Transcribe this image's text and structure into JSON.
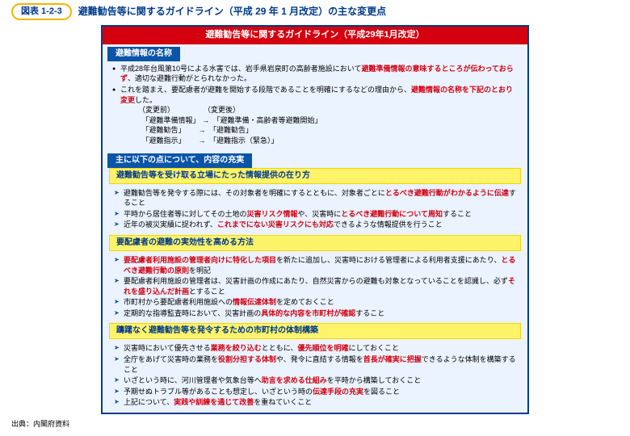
{
  "figureTag": "図表 1-2-3",
  "figureTitle": "避難勧告等に関するガイドライン（平成 29 年 1 月改定）の主な変更点",
  "banner": "避難勧告等に関するガイドライン（平成29年1月改定）",
  "tab1": "避難情報の名称",
  "tab2": "主に以下の点について、内容の充実",
  "sec1": {
    "b1a": "平成28年台風第10号による水害では、岩手県岩泉町の高齢者施設において",
    "b1r": "避難準備情報の意味するところが伝わっておらず",
    "b1b": "、適切な避難行動がとられなかった。",
    "b2a": "これを踏まえ、要配慮者が避難を開始する段階であることを明確にするなどの理由から、",
    "b2r": "避難情報の名称を下記のとおり変更",
    "b2b": "した。",
    "hdr": "（変更前）　　　　　（変更後）",
    "r1": "　「避難準備情報」 →　「避難準備・高齢者等避難開始」",
    "r2": "　「避難勧告」　　 →　「避難勧告」",
    "r3": "　「避難指示」　　 →　「避難指示（緊急）」"
  },
  "h1": "避難勧告等を受け取る立場にたった情報提供の在り方",
  "h2": "要配慮者の避難の実効性を高める方法",
  "h3": "躊躇なく避難勧告等を発令するための市町村の体制構築",
  "g1": {
    "a1a": "避難勧告等を発令する際には、その対象者を明確にするとともに、対象者ごとに",
    "a1r": "とるべき避難行動がわかるように伝達",
    "a1b": "すること",
    "a2a": "平時から居住者等に対してその土地の",
    "a2r1": "災害リスク情報",
    "a2m": "や、災害時に",
    "a2r2": "とるべき避難行動について周知",
    "a2b": "すること",
    "a3a": "近年の被災実績に捉われず、",
    "a3r": "これまでにない災害リスクにも対応",
    "a3b": "できるような情報提供を行うこと"
  },
  "g2": {
    "a1r": "要配慮者利用施設の管理者向けに特化した項目",
    "a1b": "を新たに追加し、災害時における管理者による利用者支援にあたり、",
    "a1r2": "とるべき避難行動の原則",
    "a1c": "を明記",
    "a2a": "要配慮者利用施設の管理者は、災害計画の作成にあたり、自然災害からの避難も対象となっていることを認識し、必ず",
    "a2r": "それを盛り込んだ計画",
    "a2b": "とすること",
    "a3a": "市町村から要配慮者利用施設への",
    "a3r": "情報伝達体制",
    "a3b": "を定めておくこと",
    "a4a": "定期的な指導監査時において、災害計画の",
    "a4r": "具体的な内容を市町村が確認",
    "a4b": "すること"
  },
  "g3": {
    "a1a": "災害時において優先させる",
    "a1r": "業務を絞り込む",
    "a1m": "とともに、",
    "a1r2": "優先順位を明確",
    "a1b": "にしておくこと",
    "a2a": "全庁をあげて災害時の業務を",
    "a2r": "役割分担する体制",
    "a2m": "や、発令に直結する情報を",
    "a2r2": "首長が確実に把握",
    "a2b": "できるような体制を構築すること",
    "a3a": "いざという時に、河川管理者や気象台等へ",
    "a3r": "助言を求める仕組み",
    "a3b": "を平時から構築しておくこと",
    "a4a": "予期せぬトラブル等があることも想定し、いざという時の",
    "a4r": "伝達手段の充実",
    "a4b": "を図ること",
    "a5a": "上記について、",
    "a5r": "実践や訓練を通じて改善",
    "a5b": "を重ねていくこと"
  },
  "source": "出典：内閣府資料"
}
